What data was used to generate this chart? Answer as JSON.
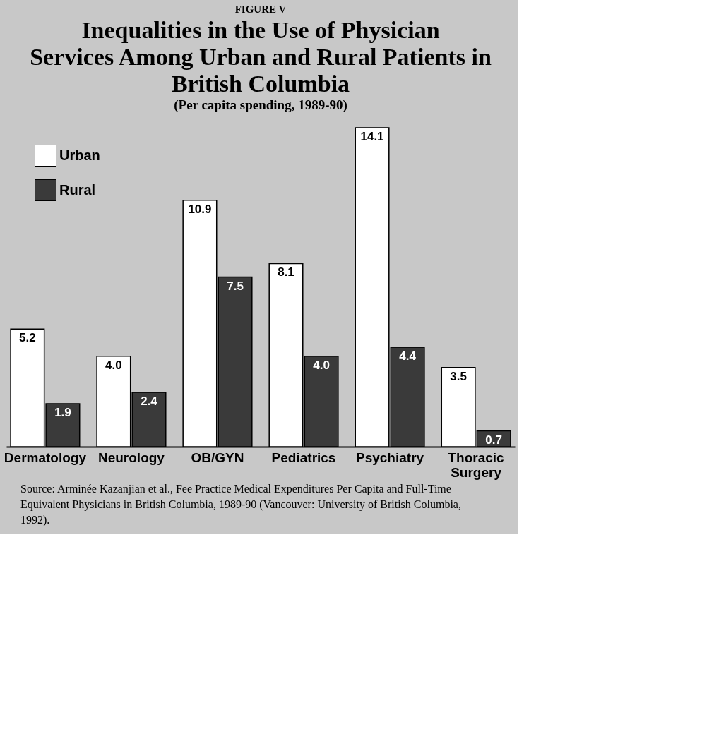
{
  "chart_data": {
    "type": "bar",
    "title": "Inequalities in the Use of Physician Services Among Urban and Rural Patients in British Columbia",
    "subtitle": "(Per capita spending, 1989-90)",
    "categories": [
      "Dermatology",
      "Neurology",
      "OB/GYN",
      "Pediatrics",
      "Psychiatry",
      "Thoracic Surgery"
    ],
    "series": [
      {
        "name": "Urban",
        "color": "#ffffff",
        "values": [
          5.2,
          4.0,
          10.9,
          8.1,
          14.1,
          3.5
        ],
        "value_labels": [
          "5.2",
          "4.0",
          "10.9",
          "8.1",
          "14.1",
          "3.5"
        ]
      },
      {
        "name": "Rural",
        "color": "#3a3a3a",
        "values": [
          1.9,
          2.4,
          7.5,
          4.0,
          4.4,
          0.7
        ],
        "value_labels": [
          "1.9",
          "2.4",
          "7.5",
          "4.0",
          "4.4",
          "0.7"
        ]
      }
    ],
    "legend": "top left",
    "grid": false,
    "annotations": [
      "FIGURE V",
      "Source: Arminée Kazanjian et al., Fee Practice Medical Expenditures Per Capita and Full-Time Equivalent Physicians in British Columbia, 1989-90 (Vancouver: University of British Columbia, 1992)."
    ]
  }
}
